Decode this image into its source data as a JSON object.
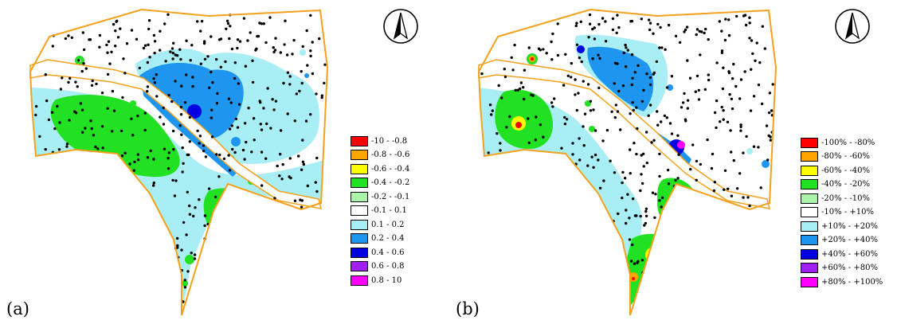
{
  "colors": {
    "outline": "#f4a11d",
    "wells": "#000000",
    "background": "#ffffff"
  },
  "panels": [
    {
      "label": "(a)",
      "compass_icon": "north-arrow-icon",
      "legend": [
        {
          "label": "-10 - -0.8",
          "color": "#ff0000"
        },
        {
          "label": "-0.8 - -0.6",
          "color": "#ffa500"
        },
        {
          "label": "-0.6 - -0.4",
          "color": "#ffff00"
        },
        {
          "label": "-0.4 - -0.2",
          "color": "#22e022"
        },
        {
          "label": "-0.2 - -0.1",
          "color": "#aaf5aa"
        },
        {
          "label": "-0.1 - 0.1",
          "color": "#ffffff"
        },
        {
          "label": "0.1 - 0.2",
          "color": "#aaeef5"
        },
        {
          "label": "0.2 - 0.4",
          "color": "#1e96f0"
        },
        {
          "label": "0.4 - 0.6",
          "color": "#0000e0"
        },
        {
          "label": "0.6 - 0.8",
          "color": "#a020f0"
        },
        {
          "label": "0.8 - 10",
          "color": "#ff00ff"
        }
      ]
    },
    {
      "label": "(b)",
      "compass_icon": "north-arrow-icon",
      "legend": [
        {
          "label": "-100% - -80%",
          "color": "#ff0000"
        },
        {
          "label": "-80% - -60%",
          "color": "#ffa500"
        },
        {
          "label": "-60% - -40%",
          "color": "#ffff00"
        },
        {
          "label": "-40% - -20%",
          "color": "#22e022"
        },
        {
          "label": "-20% - -10%",
          "color": "#aaf5aa"
        },
        {
          "label": "-10% - +10%",
          "color": "#ffffff"
        },
        {
          "label": "+10% - +20%",
          "color": "#aaeef5"
        },
        {
          "label": "+20% - +40%",
          "color": "#1e96f0"
        },
        {
          "label": "+40% - +60%",
          "color": "#0000e0"
        },
        {
          "label": "+60% - +80%",
          "color": "#a020f0"
        },
        {
          "label": "+80% - +100%",
          "color": "#ff00ff"
        }
      ]
    }
  ]
}
